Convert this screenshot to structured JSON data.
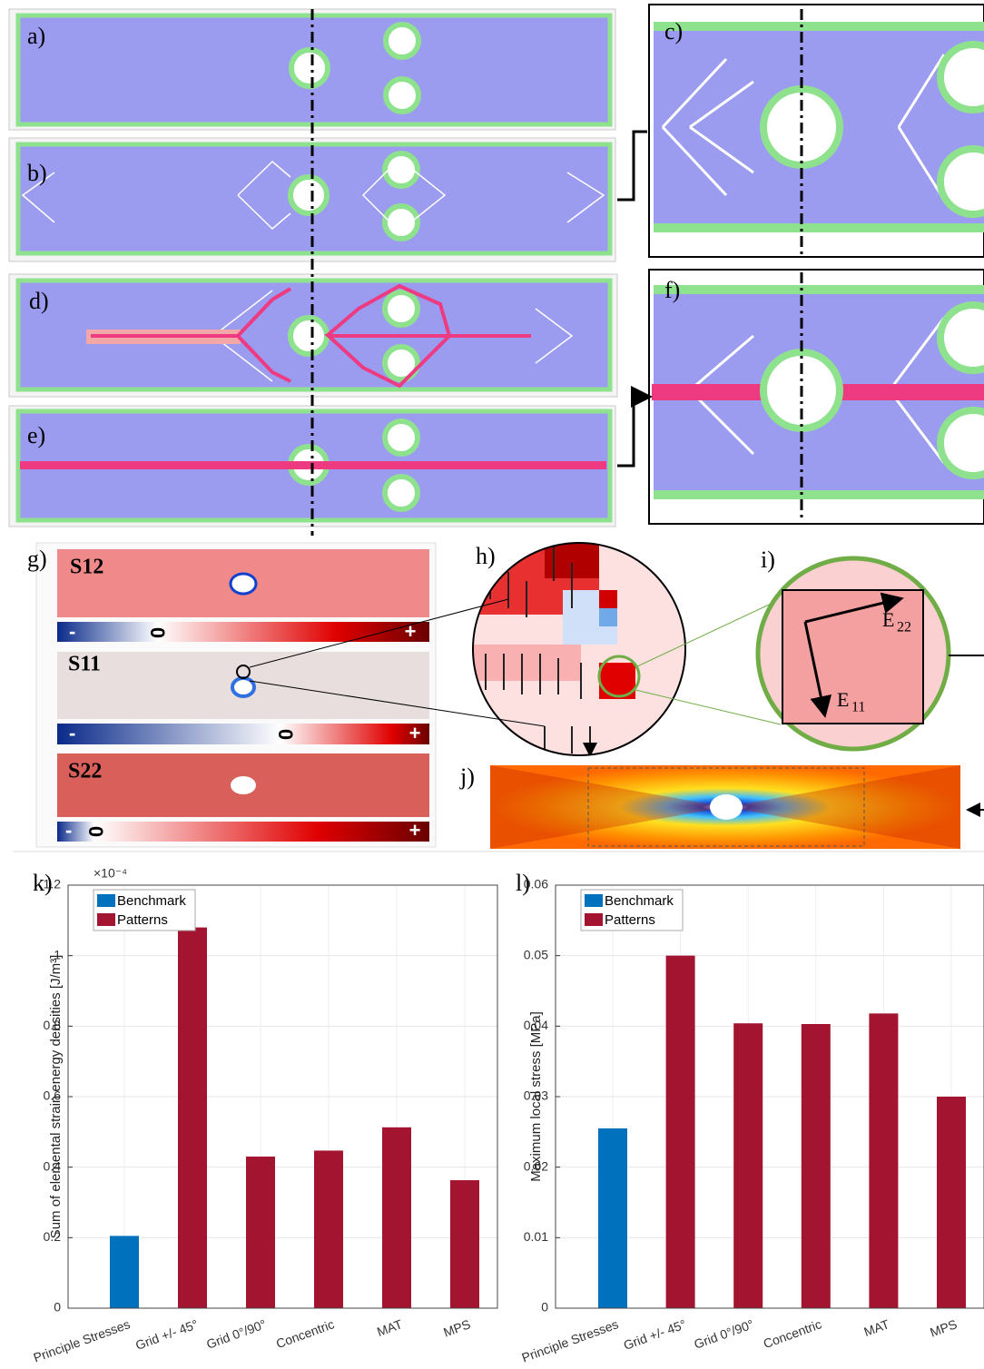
{
  "labels": {
    "a": "a)",
    "b": "b)",
    "c": "c)",
    "d": "d)",
    "e": "e)",
    "f": "f)",
    "g": "g)",
    "h": "h)",
    "i": "i)",
    "j": "j)",
    "k": "k)",
    "l": "l)"
  },
  "stress_panels": [
    {
      "name": "S12",
      "minus": "-",
      "zero": "0",
      "plus": "+"
    },
    {
      "name": "S11",
      "minus": "-",
      "zero": "0",
      "plus": "+"
    },
    {
      "name": "S22",
      "minus": "-",
      "zero": "0",
      "plus": "+"
    }
  ],
  "directions": [
    {
      "letter": "E",
      "sub": "22"
    },
    {
      "letter": "E",
      "sub": "11"
    }
  ],
  "chart_data": [
    {
      "type": "bar",
      "ylabel": "Sum of elemental strain energy densities [J/m³]",
      "axis_multiplier": "×10⁻⁴",
      "categories": [
        "Principle Stresses",
        "Grid +/- 45°",
        "Grid 0°/90°",
        "Concentric",
        "MAT",
        "MPS"
      ],
      "series": [
        {
          "name": "Benchmark",
          "color": "#0072bd",
          "values": [
            0.205,
            null,
            null,
            null,
            null,
            null
          ]
        },
        {
          "name": "Patterns",
          "color": "#a2142f",
          "values": [
            null,
            1.08,
            0.43,
            0.447,
            0.513,
            0.363
          ]
        }
      ],
      "ylim": [
        0,
        1.2
      ],
      "yticks": [
        0,
        0.2,
        0.4,
        0.6,
        0.8,
        1,
        1.2
      ],
      "grid": true,
      "legend": "upper left"
    },
    {
      "type": "bar",
      "ylabel": "Maximum local stress [MPa]",
      "categories": [
        "Principle Stresses",
        "Grid +/- 45°",
        "Grid 0°/90°",
        "Concentric",
        "MAT",
        "MPS"
      ],
      "series": [
        {
          "name": "Benchmark",
          "color": "#0072bd",
          "values": [
            0.0255,
            null,
            null,
            null,
            null,
            null
          ]
        },
        {
          "name": "Patterns",
          "color": "#a2142f",
          "values": [
            null,
            0.05,
            0.0404,
            0.0403,
            0.0418,
            0.03
          ]
        }
      ],
      "ylim": [
        0,
        0.06
      ],
      "yticks": [
        0,
        0.01,
        0.02,
        0.03,
        0.04,
        0.05,
        0.06
      ],
      "grid": true,
      "legend": "upper left"
    }
  ]
}
